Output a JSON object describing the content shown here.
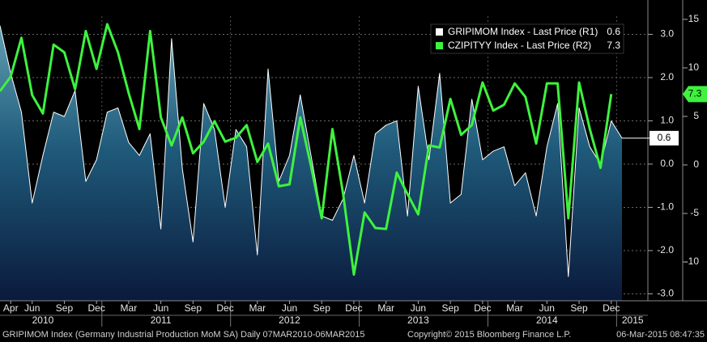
{
  "chart_data": {
    "type": "line",
    "x": [
      "2010-03",
      "2010-04",
      "2010-05",
      "2010-06",
      "2010-07",
      "2010-08",
      "2010-09",
      "2010-10",
      "2010-11",
      "2010-12",
      "2011-01",
      "2011-02",
      "2011-03",
      "2011-04",
      "2011-05",
      "2011-06",
      "2011-07",
      "2011-08",
      "2011-09",
      "2011-10",
      "2011-11",
      "2011-12",
      "2012-01",
      "2012-02",
      "2012-03",
      "2012-04",
      "2012-05",
      "2012-06",
      "2012-07",
      "2012-08",
      "2012-09",
      "2012-10",
      "2012-11",
      "2012-12",
      "2013-01",
      "2013-02",
      "2013-03",
      "2013-04",
      "2013-05",
      "2013-06",
      "2013-07",
      "2013-08",
      "2013-09",
      "2013-10",
      "2013-11",
      "2013-12",
      "2014-01",
      "2014-02",
      "2014-03",
      "2014-04",
      "2014-05",
      "2014-06",
      "2014-07",
      "2014-08",
      "2014-09",
      "2014-10",
      "2014-11",
      "2014-12",
      "2015-01"
    ],
    "xlim": [
      "2010-03",
      "2015-01"
    ],
    "xticks": [
      {
        "value": "2010-04",
        "label": "Apr"
      },
      {
        "value": "2010-06",
        "label": "Jun"
      },
      {
        "value": "2010-09",
        "label": "Sep"
      },
      {
        "value": "2010-12",
        "label": "Dec"
      },
      {
        "value": "2011-03",
        "label": "Mar"
      },
      {
        "value": "2011-06",
        "label": "Jun"
      },
      {
        "value": "2011-09",
        "label": "Sep"
      },
      {
        "value": "2011-12",
        "label": "Dec"
      },
      {
        "value": "2012-03",
        "label": "Mar"
      },
      {
        "value": "2012-06",
        "label": "Jun"
      },
      {
        "value": "2012-09",
        "label": "Sep"
      },
      {
        "value": "2012-12",
        "label": "Dec"
      },
      {
        "value": "2013-03",
        "label": "Mar"
      },
      {
        "value": "2013-06",
        "label": "Jun"
      },
      {
        "value": "2013-09",
        "label": "Sep"
      },
      {
        "value": "2013-12",
        "label": "Dec"
      },
      {
        "value": "2014-03",
        "label": "Mar"
      },
      {
        "value": "2014-06",
        "label": "Jun"
      },
      {
        "value": "2014-09",
        "label": "Sep"
      },
      {
        "value": "2014-12",
        "label": "Dec"
      }
    ],
    "year_ticks": [
      {
        "value": "2010-07",
        "label": "2010"
      },
      {
        "value": "2011-06",
        "label": "2011"
      },
      {
        "value": "2012-06",
        "label": "2012"
      },
      {
        "value": "2013-06",
        "label": "2013"
      },
      {
        "value": "2014-06",
        "label": "2014"
      },
      {
        "value": "2015-02",
        "label": "2015"
      }
    ],
    "ylim": [
      -3.16,
      3.42
    ],
    "yticks": [
      {
        "value": 3,
        "label": "3.0"
      },
      {
        "value": 2,
        "label": "2.0"
      },
      {
        "value": 1,
        "label": "1.0"
      },
      {
        "value": 0,
        "label": "0.0"
      },
      {
        "value": -1,
        "label": "-1.0"
      },
      {
        "value": -2,
        "label": "-2.0"
      },
      {
        "value": -3,
        "label": "-3.0"
      }
    ],
    "y2lim": [
      -14,
      15.33
    ],
    "y2ticks": [
      15,
      10,
      5,
      0,
      -5,
      -10
    ],
    "grid": true,
    "legend": "top-right",
    "series": [
      {
        "name": "GRIPIMOM Index - Last Price (R1)",
        "color": "#ffffff",
        "fill": "area",
        "values": [
          3.2,
          2.1,
          1.2,
          -0.9,
          0.2,
          1.2,
          1.1,
          1.7,
          -0.4,
          0.1,
          1.2,
          1.3,
          0.5,
          0.2,
          0.7,
          -1.5,
          2.9,
          -0.1,
          -1.8,
          1.4,
          0.8,
          -1.0,
          0.8,
          0.4,
          -2.1,
          2.2,
          -0.4,
          0.2,
          1.6,
          0.2,
          -1.2,
          -1.3,
          -0.8,
          0.2,
          -0.9,
          0.7,
          0.9,
          1.0,
          -1.2,
          1.8,
          0.1,
          2.1,
          -0.9,
          -0.7,
          1.5,
          0.1,
          0.3,
          0.4,
          -0.5,
          -0.2,
          -1.2,
          0.4,
          1.4,
          -2.6,
          1.3,
          0.4,
          0.0,
          1.0,
          0.6
        ]
      },
      {
        "name": "CZIPITYY Index - Last Price (R2)",
        "color": "#3ef23e",
        "axis": "y2",
        "values": [
          7.6,
          9.1,
          13.1,
          7.2,
          5.3,
          12.4,
          11.6,
          7.8,
          13.8,
          9.9,
          14.5,
          11.6,
          7.4,
          3.7,
          13.8,
          4.9,
          2.0,
          4.9,
          1.2,
          2.4,
          4.5,
          2.4,
          2.8,
          4.1,
          0.3,
          2.2,
          -2.2,
          -2.0,
          4.9,
          -0.1,
          -5.5,
          3.7,
          -3.0,
          -11.3,
          -4.9,
          -6.5,
          -6.6,
          -0.8,
          -3.0,
          -5.1,
          2.0,
          1.8,
          6.8,
          3.1,
          4.1,
          8.5,
          5.6,
          6.2,
          8.4,
          7.0,
          2.2,
          8.4,
          8.4,
          -5.5,
          8.5,
          3.7,
          -0.3,
          7.3,
          null
        ]
      }
    ],
    "footer": {
      "description": "GRIPIMOM Index (Germany Industrial Production MoM SA)  Daily 07MAR2010-06MAR2015",
      "copyright": "Copyright© 2015 Bloomberg Finance L.P.",
      "timestamp": "06-Mar-2015 08:47:35"
    }
  }
}
